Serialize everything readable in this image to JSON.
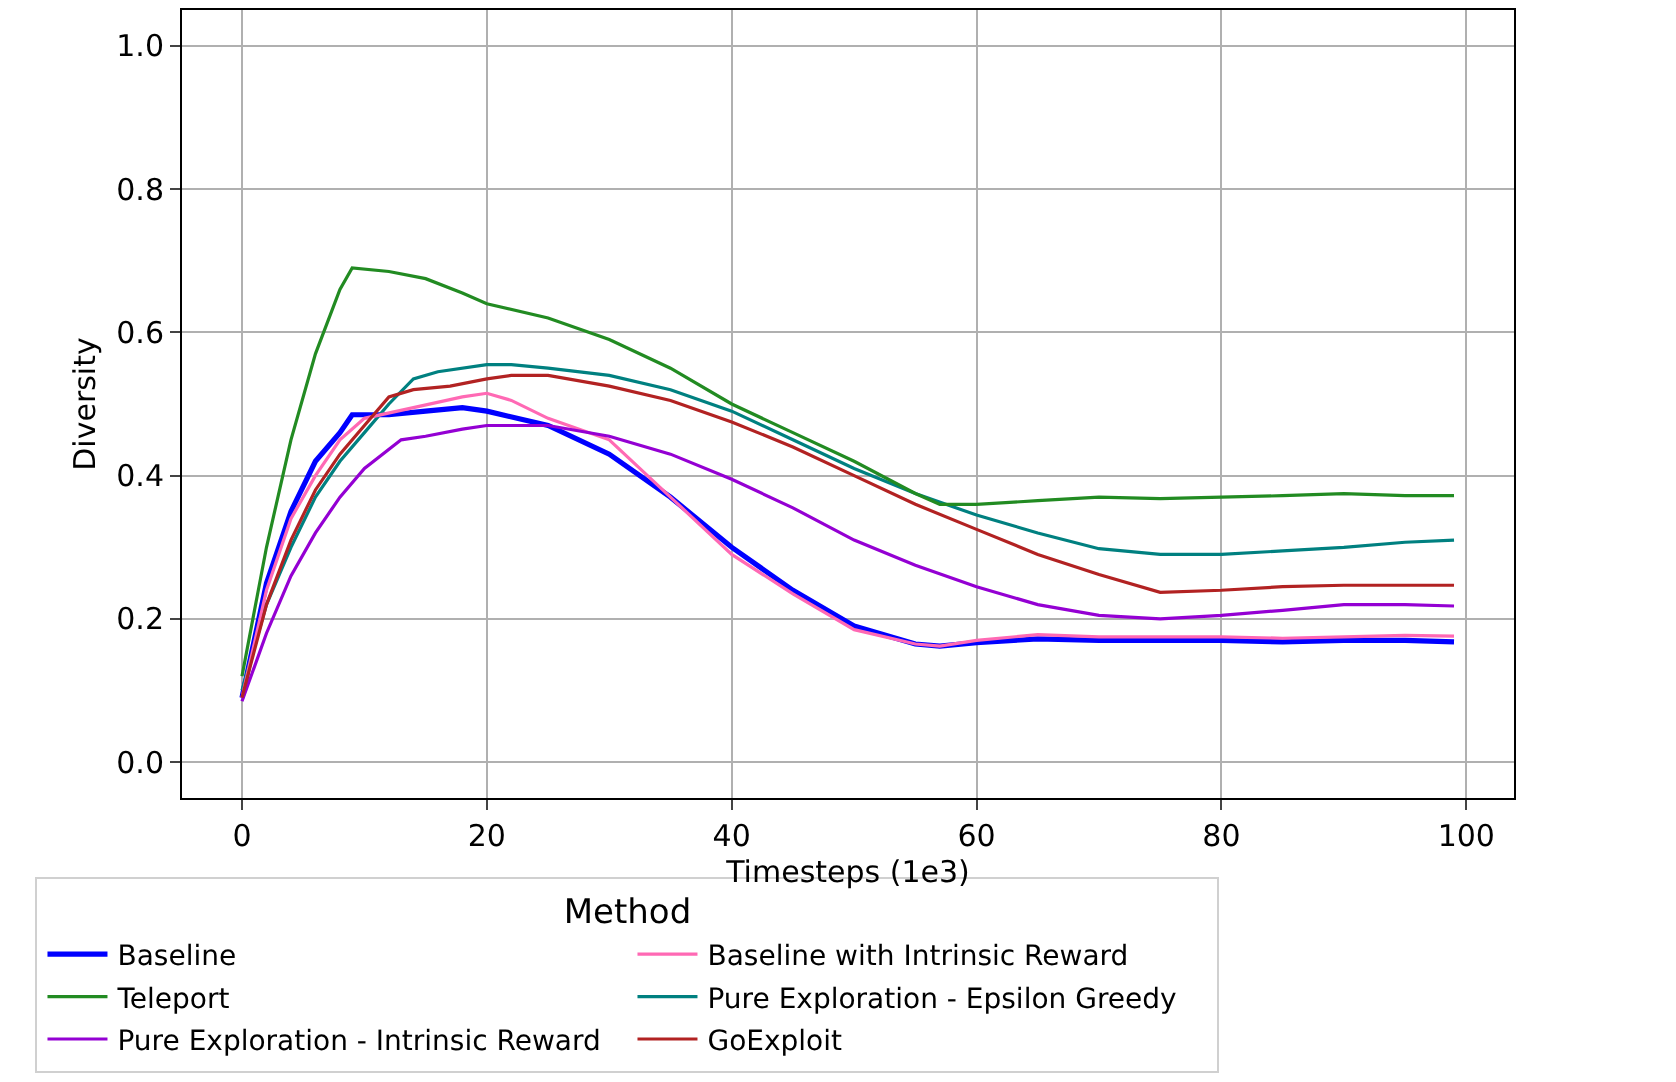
{
  "chart_data": {
    "type": "line",
    "xlabel": "Timesteps (1e3)",
    "ylabel": "Diversity",
    "legend_title": "Method",
    "xlim": [
      -4.9,
      103.9
    ],
    "ylim": [
      -0.05,
      1.05
    ],
    "xticks": [
      0,
      20,
      40,
      60,
      80,
      100
    ],
    "yticks": [
      {
        "value": 0,
        "label": "0.0"
      },
      0.2,
      0.4,
      0.6,
      0.8,
      {
        "value": 1,
        "label": "1.0"
      }
    ],
    "grid": true,
    "legend": "bottom",
    "line_style": "solid",
    "marker": "none",
    "series": [
      {
        "name": "Baseline",
        "color": "#0000ff",
        "x": [
          0,
          2,
          4,
          6,
          8,
          9,
          12,
          15,
          18,
          20,
          25,
          30,
          35,
          40,
          45,
          50,
          55,
          57,
          60,
          65,
          70,
          75,
          80,
          85,
          90,
          95,
          99
        ],
        "values": [
          0.09,
          0.25,
          0.35,
          0.42,
          0.46,
          0.485,
          0.485,
          0.49,
          0.495,
          0.49,
          0.47,
          0.43,
          0.37,
          0.3,
          0.24,
          0.19,
          0.165,
          0.162,
          0.167,
          0.172,
          0.17,
          0.17,
          0.17,
          0.168,
          0.17,
          0.17,
          0.168
        ]
      },
      {
        "name": "Pure Exploration - Epsilon Greedy",
        "color": "#008080",
        "x": [
          0,
          2,
          4,
          6,
          8,
          10,
          12,
          14,
          16,
          20,
          22,
          25,
          30,
          35,
          40,
          45,
          50,
          55,
          60,
          65,
          70,
          75,
          80,
          85,
          90,
          95,
          99
        ],
        "values": [
          0.1,
          0.22,
          0.3,
          0.37,
          0.42,
          0.46,
          0.5,
          0.535,
          0.545,
          0.555,
          0.555,
          0.55,
          0.54,
          0.52,
          0.49,
          0.45,
          0.41,
          0.375,
          0.345,
          0.32,
          0.298,
          0.29,
          0.29,
          0.295,
          0.3,
          0.307,
          0.31
        ]
      },
      {
        "name": "Baseline with Intrinsic Reward",
        "color": "#ff69b4",
        "x": [
          0,
          2,
          4,
          6,
          8,
          10,
          14,
          18,
          20,
          22,
          25,
          30,
          35,
          40,
          45,
          50,
          55,
          57,
          60,
          65,
          70,
          75,
          80,
          85,
          90,
          95,
          99
        ],
        "values": [
          0.09,
          0.24,
          0.34,
          0.4,
          0.45,
          0.48,
          0.495,
          0.51,
          0.515,
          0.505,
          0.48,
          0.45,
          0.37,
          0.29,
          0.235,
          0.185,
          0.165,
          0.162,
          0.17,
          0.178,
          0.175,
          0.175,
          0.175,
          0.173,
          0.175,
          0.177,
          0.176
        ]
      },
      {
        "name": "Pure Exploration - Intrinsic Reward",
        "color": "#9400d3",
        "x": [
          0,
          2,
          4,
          6,
          8,
          10,
          13,
          15,
          18,
          20,
          25,
          30,
          35,
          40,
          45,
          50,
          55,
          60,
          65,
          70,
          75,
          80,
          85,
          90,
          95,
          99
        ],
        "values": [
          0.085,
          0.18,
          0.26,
          0.32,
          0.37,
          0.41,
          0.45,
          0.455,
          0.465,
          0.47,
          0.47,
          0.455,
          0.43,
          0.395,
          0.355,
          0.31,
          0.275,
          0.245,
          0.22,
          0.205,
          0.2,
          0.205,
          0.212,
          0.22,
          0.22,
          0.218
        ]
      },
      {
        "name": "Teleport",
        "color": "#228b22",
        "x": [
          0,
          2,
          4,
          6,
          8,
          9,
          12,
          15,
          18,
          20,
          25,
          30,
          35,
          40,
          45,
          50,
          55,
          57,
          60,
          65,
          70,
          75,
          80,
          85,
          90,
          95,
          99
        ],
        "values": [
          0.12,
          0.3,
          0.45,
          0.57,
          0.66,
          0.69,
          0.685,
          0.675,
          0.655,
          0.64,
          0.62,
          0.59,
          0.55,
          0.5,
          0.46,
          0.42,
          0.375,
          0.36,
          0.36,
          0.365,
          0.37,
          0.368,
          0.37,
          0.372,
          0.375,
          0.372,
          0.372
        ]
      },
      {
        "name": "GoExploit",
        "color": "#b22222",
        "x": [
          0,
          2,
          4,
          6,
          8,
          10,
          12,
          14,
          17,
          20,
          22,
          25,
          30,
          35,
          40,
          45,
          50,
          55,
          60,
          65,
          70,
          75,
          80,
          85,
          90,
          95,
          99
        ],
        "values": [
          0.09,
          0.22,
          0.31,
          0.38,
          0.43,
          0.47,
          0.51,
          0.52,
          0.525,
          0.535,
          0.54,
          0.54,
          0.525,
          0.505,
          0.475,
          0.44,
          0.4,
          0.36,
          0.325,
          0.29,
          0.262,
          0.237,
          0.24,
          0.245,
          0.247,
          0.247,
          0.247
        ]
      }
    ]
  }
}
